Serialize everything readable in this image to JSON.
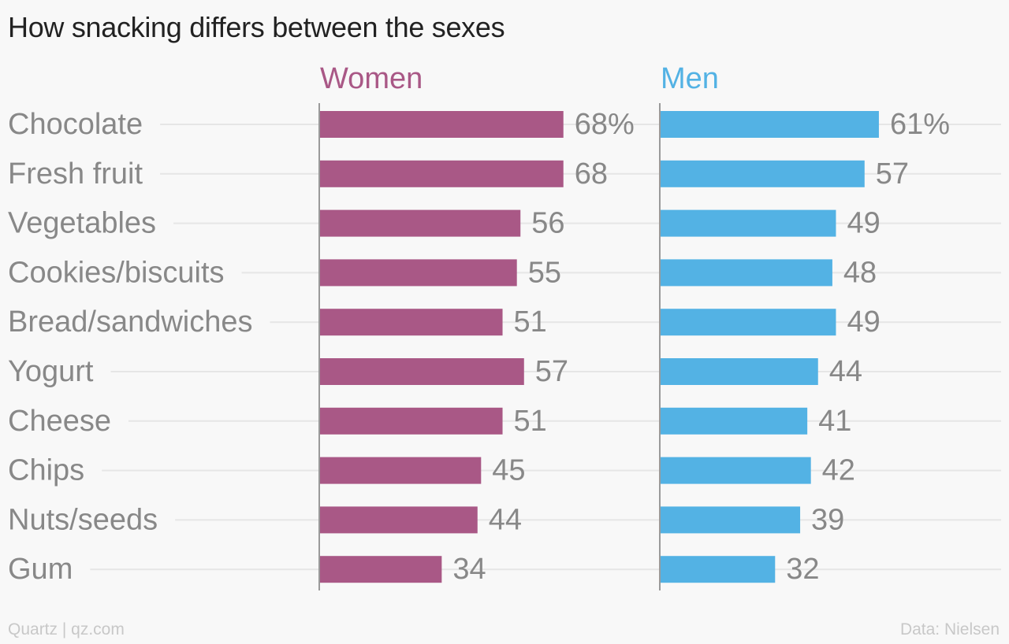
{
  "chart_data": {
    "type": "bar",
    "title": "How snacking differs between the sexes",
    "categories": [
      "Chocolate",
      "Fresh fruit",
      "Vegetables",
      "Cookies/biscuits",
      "Bread/sandwiches",
      "Yogurt",
      "Cheese",
      "Chips",
      "Nuts/seeds",
      "Gum"
    ],
    "series": [
      {
        "name": "Women",
        "color": "#a95886",
        "values": [
          68,
          68,
          56,
          55,
          51,
          57,
          51,
          45,
          44,
          34
        ],
        "labels": [
          "68%",
          "68",
          "56",
          "55",
          "51",
          "57",
          "51",
          "45",
          "44",
          "34"
        ]
      },
      {
        "name": "Men",
        "color": "#53b2e4",
        "values": [
          61,
          57,
          49,
          48,
          49,
          44,
          41,
          42,
          39,
          32
        ],
        "labels": [
          "61%",
          "57",
          "49",
          "48",
          "49",
          "44",
          "41",
          "42",
          "39",
          "32"
        ]
      }
    ],
    "xlim": [
      0,
      100
    ],
    "legend": "top",
    "grid": true
  },
  "footer": {
    "source_left": "Quartz | qz.com",
    "source_right": "Data: Nielsen"
  }
}
